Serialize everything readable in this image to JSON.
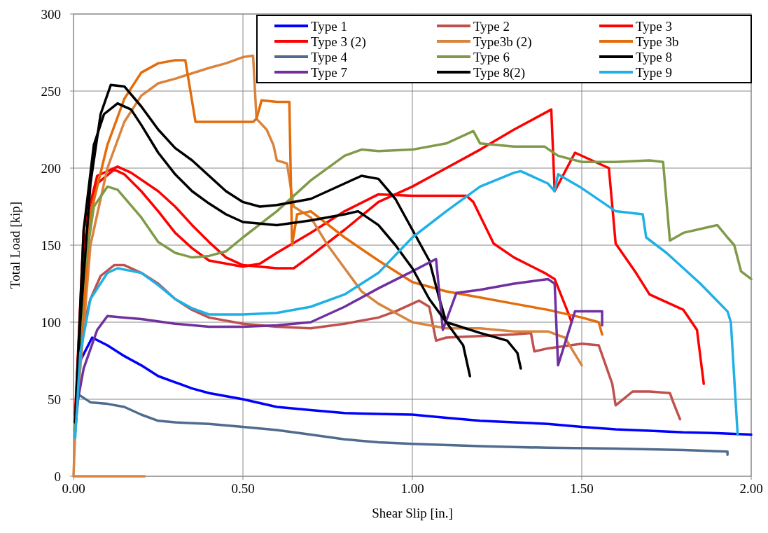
{
  "chart_data": {
    "type": "line",
    "xlabel": "Shear Slip [in.]",
    "ylabel": "Total Load [kip]",
    "xlim": [
      0,
      2
    ],
    "ylim": [
      0,
      300
    ],
    "xticks": [
      {
        "value": 0,
        "label": "0.00"
      },
      {
        "value": 0.5,
        "label": "0.50"
      },
      {
        "value": 1,
        "label": "1.00"
      },
      {
        "value": 1.5,
        "label": "1.50"
      },
      {
        "value": 2,
        "label": "2.00"
      }
    ],
    "yticks": [
      0,
      50,
      100,
      150,
      200,
      250,
      300
    ],
    "grid": true,
    "legend": "top right",
    "marker": "none",
    "line_style": "solid",
    "series": [
      {
        "name": "Type 1",
        "color": "#0000ff",
        "x": [
          0.02,
          0.055,
          0.1,
          0.15,
          0.2,
          0.25,
          0.3,
          0.35,
          0.4,
          0.5,
          0.6,
          0.7,
          0.8,
          0.9,
          1.0,
          1.1,
          1.2,
          1.3,
          1.4,
          1.5,
          1.6,
          1.7,
          1.8,
          1.9,
          2.0
        ],
        "values": [
          75,
          90,
          85,
          78,
          72,
          65,
          61,
          57,
          54,
          50,
          45,
          43,
          41,
          40.5,
          40,
          38,
          36,
          35,
          34,
          32,
          30.5,
          29.5,
          28.5,
          28,
          27
        ]
      },
      {
        "name": "Type 2",
        "color": "#c0504d",
        "x": [
          0.005,
          0.02,
          0.05,
          0.08,
          0.12,
          0.15,
          0.2,
          0.25,
          0.3,
          0.35,
          0.4,
          0.5,
          0.6,
          0.7,
          0.8,
          0.9,
          0.95,
          1.0,
          1.02,
          1.05,
          1.07,
          1.1,
          1.2,
          1.3,
          1.35,
          1.36,
          1.4,
          1.5,
          1.55,
          1.59,
          1.6,
          1.65,
          1.7,
          1.76,
          1.77,
          1.79
        ],
        "values": [
          40,
          90,
          115,
          130,
          137,
          137,
          132,
          125,
          115,
          108,
          103,
          99,
          97,
          96,
          99,
          103,
          107,
          112,
          114,
          110,
          88,
          90,
          91,
          92,
          93,
          81,
          83,
          86,
          85,
          60,
          46,
          55,
          55,
          54,
          48,
          37
        ]
      },
      {
        "name": "Type 3",
        "color": "#ff0000",
        "x": [
          0.005,
          0.03,
          0.07,
          0.12,
          0.15,
          0.2,
          0.25,
          0.3,
          0.35,
          0.4,
          0.5,
          0.55,
          0.6,
          0.7,
          0.8,
          0.9,
          1.0,
          1.1,
          1.16,
          1.18,
          1.24,
          1.3,
          1.39,
          1.42,
          1.46,
          1.47
        ],
        "values": [
          40,
          150,
          190,
          199,
          196,
          185,
          172,
          158,
          148,
          140,
          136,
          138,
          145,
          158,
          172,
          183,
          182,
          182,
          182,
          178,
          151,
          142,
          132,
          128,
          106,
          100
        ]
      },
      {
        "name": "Type 3 (2)",
        "color": "#ff0000",
        "x": [
          0.005,
          0.03,
          0.07,
          0.13,
          0.17,
          0.25,
          0.3,
          0.35,
          0.4,
          0.45,
          0.5,
          0.6,
          0.65,
          0.7,
          0.8,
          0.9,
          1.0,
          1.1,
          1.2,
          1.3,
          1.41,
          1.42,
          1.48,
          1.58,
          1.6,
          1.66,
          1.7,
          1.8,
          1.84,
          1.86
        ],
        "values": [
          40,
          160,
          195,
          201,
          197,
          185,
          175,
          163,
          152,
          142,
          137,
          135,
          135,
          143,
          160,
          178,
          188,
          200,
          212,
          225,
          238,
          185,
          210,
          200,
          151,
          132,
          118,
          108,
          95,
          60
        ]
      },
      {
        "name": "Type3b (2)",
        "color": "#d9843e",
        "x": [
          0.21,
          0,
          0.005,
          0.05,
          0.1,
          0.15,
          0.2,
          0.25,
          0.3,
          0.4,
          0.45,
          0.5,
          0.53,
          0.54,
          0.57,
          0.59,
          0.6,
          0.63,
          0.65,
          0.7,
          0.75,
          0.8,
          0.85,
          0.9,
          1.0,
          1.1,
          1.2,
          1.3,
          1.4,
          1.45,
          1.5
        ],
        "values": [
          0,
          0,
          30,
          150,
          200,
          230,
          247,
          255,
          258,
          265,
          268,
          272,
          273,
          232,
          225,
          215,
          205,
          203,
          175,
          168,
          150,
          135,
          120,
          112,
          100,
          96,
          96,
          94,
          94,
          90,
          72
        ]
      },
      {
        "name": "Type 3b",
        "color": "#e46c0a",
        "x": [
          0.005,
          0.05,
          0.1,
          0.15,
          0.2,
          0.25,
          0.3,
          0.33,
          0.36,
          0.45,
          0.53,
          0.54,
          0.555,
          0.6,
          0.637,
          0.645,
          0.66,
          0.7,
          0.8,
          0.9,
          1.0,
          1.1,
          1.2,
          1.3,
          1.4,
          1.5,
          1.55,
          1.56
        ],
        "values": [
          30,
          170,
          215,
          245,
          262,
          268,
          270,
          270,
          230,
          230,
          230,
          232,
          244,
          243,
          243,
          150,
          170,
          172,
          155,
          140,
          126,
          120,
          116,
          112,
          108,
          103,
          100,
          92
        ]
      },
      {
        "name": "Type 4",
        "color": "#4f6b8f",
        "x": [
          0.005,
          0.015,
          0.05,
          0.1,
          0.15,
          0.2,
          0.25,
          0.3,
          0.4,
          0.5,
          0.6,
          0.7,
          0.8,
          0.9,
          1.0,
          1.2,
          1.4,
          1.6,
          1.8,
          1.93,
          1.93
        ],
        "values": [
          30,
          53,
          48,
          47,
          45,
          40,
          36,
          35,
          34,
          32,
          30,
          27,
          24,
          22,
          21,
          19.5,
          18.5,
          18,
          17,
          16,
          14
        ]
      },
      {
        "name": "Type 6",
        "color": "#7f9a48",
        "x": [
          0.005,
          0.03,
          0.06,
          0.1,
          0.13,
          0.2,
          0.25,
          0.3,
          0.35,
          0.4,
          0.45,
          0.5,
          0.6,
          0.7,
          0.8,
          0.85,
          0.9,
          1.0,
          1.1,
          1.18,
          1.2,
          1.3,
          1.39,
          1.43,
          1.5,
          1.6,
          1.7,
          1.74,
          1.76,
          1.8,
          1.9,
          1.93,
          1.95,
          1.97,
          2.0
        ],
        "values": [
          30,
          130,
          175,
          188,
          186,
          168,
          152,
          145,
          142,
          143,
          146,
          155,
          172,
          192,
          208,
          212,
          211,
          212,
          216,
          224,
          216,
          214,
          214,
          208,
          204,
          204,
          205,
          204,
          153,
          158,
          163,
          155,
          150,
          133,
          128
        ]
      },
      {
        "name": "Type 8",
        "color": "#000000",
        "x": [
          0.005,
          0.02,
          0.05,
          0.08,
          0.11,
          0.15,
          0.2,
          0.25,
          0.3,
          0.35,
          0.4,
          0.45,
          0.5,
          0.55,
          0.6,
          0.7,
          0.8,
          0.85,
          0.9,
          0.95,
          1.0,
          1.05,
          1.08,
          1.1,
          1.15,
          1.17
        ],
        "values": [
          35,
          100,
          190,
          235,
          254,
          253,
          240,
          225,
          213,
          205,
          195,
          185,
          178,
          175,
          176,
          180,
          190,
          195,
          193,
          180,
          160,
          140,
          115,
          100,
          85,
          65
        ]
      },
      {
        "name": "Type 7",
        "color": "#7030a0",
        "x": [
          0.005,
          0.03,
          0.07,
          0.1,
          0.15,
          0.2,
          0.3,
          0.4,
          0.5,
          0.6,
          0.7,
          0.8,
          0.9,
          1.0,
          1.07,
          1.09,
          1.13,
          1.2,
          1.3,
          1.4,
          1.42,
          1.43,
          1.48,
          1.56,
          1.56
        ],
        "values": [
          40,
          70,
          95,
          104,
          103,
          102,
          99,
          97,
          97,
          98,
          100,
          110,
          122,
          133,
          141,
          95,
          119,
          121,
          125,
          128,
          125,
          72,
          107,
          107,
          98
        ]
      },
      {
        "name": "Type 8(2)",
        "color": "#000000",
        "x": [
          0.005,
          0.03,
          0.06,
          0.09,
          0.13,
          0.17,
          0.2,
          0.25,
          0.3,
          0.35,
          0.4,
          0.45,
          0.5,
          0.6,
          0.7,
          0.8,
          0.84,
          0.9,
          0.95,
          1.0,
          1.05,
          1.1,
          1.2,
          1.28,
          1.31,
          1.32
        ],
        "values": [
          35,
          160,
          215,
          235,
          242,
          238,
          228,
          210,
          196,
          185,
          177,
          170,
          165,
          163,
          166,
          170,
          172,
          163,
          150,
          135,
          115,
          100,
          93,
          88,
          80,
          70
        ]
      },
      {
        "name": "Type 9",
        "color": "#1fb0e6",
        "x": [
          0.005,
          0.02,
          0.05,
          0.1,
          0.13,
          0.2,
          0.25,
          0.3,
          0.35,
          0.4,
          0.5,
          0.6,
          0.7,
          0.8,
          0.9,
          1.0,
          1.1,
          1.2,
          1.3,
          1.32,
          1.4,
          1.42,
          1.43,
          1.5,
          1.6,
          1.68,
          1.69,
          1.75,
          1.85,
          1.93,
          1.94,
          1.96
        ],
        "values": [
          25,
          80,
          115,
          132,
          135,
          132,
          124,
          115,
          109,
          105,
          105,
          106,
          110,
          118,
          132,
          155,
          172,
          188,
          197,
          198,
          190,
          185,
          196,
          187,
          172,
          170,
          155,
          145,
          125,
          107,
          100,
          27
        ]
      }
    ]
  }
}
